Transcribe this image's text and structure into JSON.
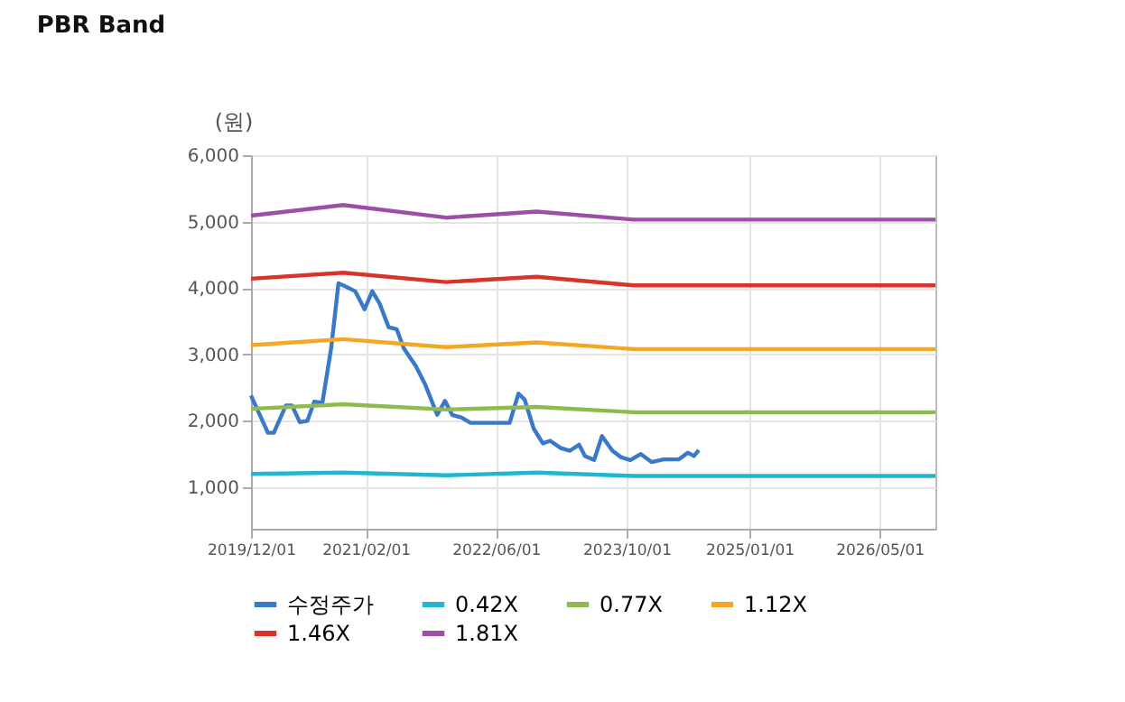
{
  "chart_data": {
    "type": "line",
    "title": "PBR Band",
    "ylabel": "(원)",
    "xlim": [
      "2019-12-01",
      "2026-11-25"
    ],
    "xticks": [
      {
        "value": "2019-12-01",
        "label": "2019/12/01"
      },
      {
        "value": "2021-02-01",
        "label": "2021/02/01"
      },
      {
        "value": "2022-06-01",
        "label": "2022/06/01"
      },
      {
        "value": "2023-10-01",
        "label": "2023/10/01"
      },
      {
        "value": "2025-01-01",
        "label": "2025/01/01"
      },
      {
        "value": "2026-05-01",
        "label": "2026/05/01"
      }
    ],
    "ylim": [
      375,
      6000
    ],
    "yticks": [
      {
        "value": 1000,
        "label": "1,000"
      },
      {
        "value": 2000,
        "label": "2,000"
      },
      {
        "value": 3000,
        "label": "3,000"
      },
      {
        "value": 4000,
        "label": "4,000"
      },
      {
        "value": 5000,
        "label": "5,000"
      },
      {
        "value": 6000,
        "label": "6,000"
      }
    ],
    "grid": true,
    "legend": "bottom",
    "marker": "none",
    "line_style": "solid",
    "series": [
      {
        "name": "수정주가",
        "color": "#3a78c9",
        "x": [
          "2019-12-01",
          "2020-02-02",
          "2020-02-24",
          "2020-04-09",
          "2020-05-02",
          "2020-05-31",
          "2020-06-28",
          "2020-07-24",
          "2020-08-23",
          "2020-09-25",
          "2020-10-22",
          "2020-11-09",
          "2020-12-24",
          "2021-01-27",
          "2021-02-25",
          "2021-03-24",
          "2021-04-27",
          "2021-05-27",
          "2021-06-23",
          "2021-08-07",
          "2021-09-10",
          "2021-10-25",
          "2021-11-23",
          "2021-12-20",
          "2022-01-23",
          "2022-02-26",
          "2022-07-22",
          "2022-08-24",
          "2022-09-16",
          "2022-10-20",
          "2022-11-23",
          "2022-12-20",
          "2023-01-29",
          "2023-03-04",
          "2023-04-07",
          "2023-04-29",
          "2023-06-02",
          "2023-07-01",
          "2023-08-09",
          "2023-09-11",
          "2023-10-15",
          "2023-11-23",
          "2024-01-02",
          "2024-02-16",
          "2024-04-13",
          "2024-05-16",
          "2024-06-08",
          "2024-06-26"
        ],
        "values": [
          2380,
          1820,
          1820,
          2230,
          2230,
          1980,
          2000,
          2290,
          2270,
          3100,
          4070,
          4040,
          3950,
          3680,
          3950,
          3770,
          3410,
          3380,
          3090,
          2820,
          2550,
          2090,
          2300,
          2090,
          2050,
          1970,
          1970,
          2410,
          2320,
          1880,
          1660,
          1700,
          1590,
          1550,
          1640,
          1470,
          1410,
          1770,
          1550,
          1450,
          1410,
          1500,
          1380,
          1420,
          1420,
          1520,
          1470,
          1560
        ]
      },
      {
        "name": "0.42X",
        "color": "#21b5cf",
        "x": [
          "2019-12-01",
          "2020-11-09",
          "2021-11-27",
          "2022-10-31",
          "2023-10-27",
          "2026-11-25"
        ],
        "values": [
          1200,
          1220,
          1180,
          1220,
          1170,
          1170
        ]
      },
      {
        "name": "0.77X",
        "color": "#8dbb4f",
        "x": [
          "2019-12-01",
          "2020-11-09",
          "2021-11-27",
          "2022-10-31",
          "2023-10-27",
          "2026-11-25"
        ],
        "values": [
          2180,
          2250,
          2170,
          2210,
          2130,
          2130
        ]
      },
      {
        "name": "1.12X",
        "color": "#f5a623",
        "x": [
          "2019-12-01",
          "2020-11-09",
          "2021-11-27",
          "2022-10-31",
          "2023-10-27",
          "2026-11-25"
        ],
        "values": [
          3140,
          3230,
          3110,
          3180,
          3080,
          3080
        ]
      },
      {
        "name": "1.46X",
        "color": "#d9342b",
        "x": [
          "2019-12-01",
          "2020-11-09",
          "2021-11-27",
          "2022-10-31",
          "2023-10-27",
          "2026-11-25"
        ],
        "values": [
          4140,
          4230,
          4090,
          4170,
          4040,
          4040
        ]
      },
      {
        "name": "1.81X",
        "color": "#9b4fa5",
        "x": [
          "2019-12-01",
          "2020-11-09",
          "2021-11-27",
          "2022-10-31",
          "2023-10-27",
          "2026-11-25"
        ],
        "values": [
          5090,
          5250,
          5060,
          5150,
          5030,
          5030
        ]
      }
    ]
  }
}
